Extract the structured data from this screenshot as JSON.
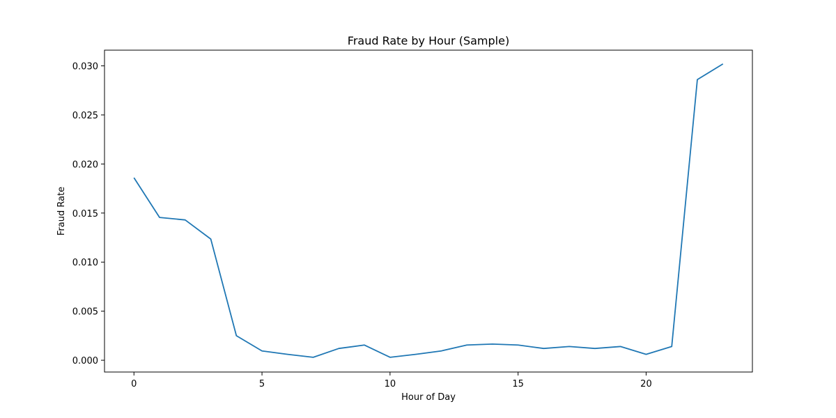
{
  "chart_data": {
    "type": "line",
    "title": "Fraud Rate by Hour (Sample)",
    "xlabel": "Hour of Day",
    "ylabel": "Fraud Rate",
    "xlim": [
      -1.15,
      24.15
    ],
    "ylim": [
      -0.0012,
      0.0316
    ],
    "x_ticks": [
      0,
      5,
      10,
      15,
      20
    ],
    "x_tick_labels": [
      "0",
      "5",
      "10",
      "15",
      "20"
    ],
    "y_ticks": [
      0.0,
      0.005,
      0.01,
      0.015,
      0.02,
      0.025,
      0.03
    ],
    "y_tick_labels": [
      "0.000",
      "0.005",
      "0.010",
      "0.015",
      "0.020",
      "0.025",
      "0.030"
    ],
    "grid": false,
    "line_color": "#1f77b4",
    "x": [
      0,
      1,
      2,
      3,
      4,
      5,
      6,
      7,
      8,
      9,
      10,
      11,
      12,
      13,
      14,
      15,
      16,
      17,
      18,
      19,
      20,
      21,
      22,
      23
    ],
    "values": [
      0.0186,
      0.01455,
      0.0143,
      0.01235,
      0.0025,
      0.00095,
      0.0006,
      0.0003,
      0.0012,
      0.00155,
      0.0003,
      0.0006,
      0.00095,
      0.00155,
      0.00165,
      0.00155,
      0.0012,
      0.0014,
      0.0012,
      0.0014,
      0.0006,
      0.0014,
      0.0286,
      0.0302
    ]
  }
}
